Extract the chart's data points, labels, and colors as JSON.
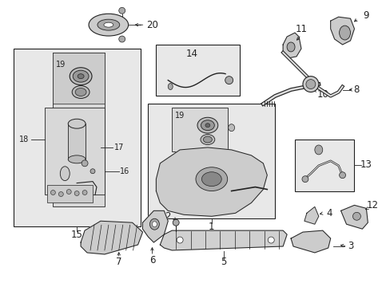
{
  "bg_color": "#ffffff",
  "box_fill": "#e8e8e8",
  "inner_fill": "#d8d8d8",
  "line_color": "#222222",
  "figsize": [
    4.89,
    3.6
  ],
  "dpi": 100,
  "label_fs": 8.5,
  "small_fs": 7.0
}
